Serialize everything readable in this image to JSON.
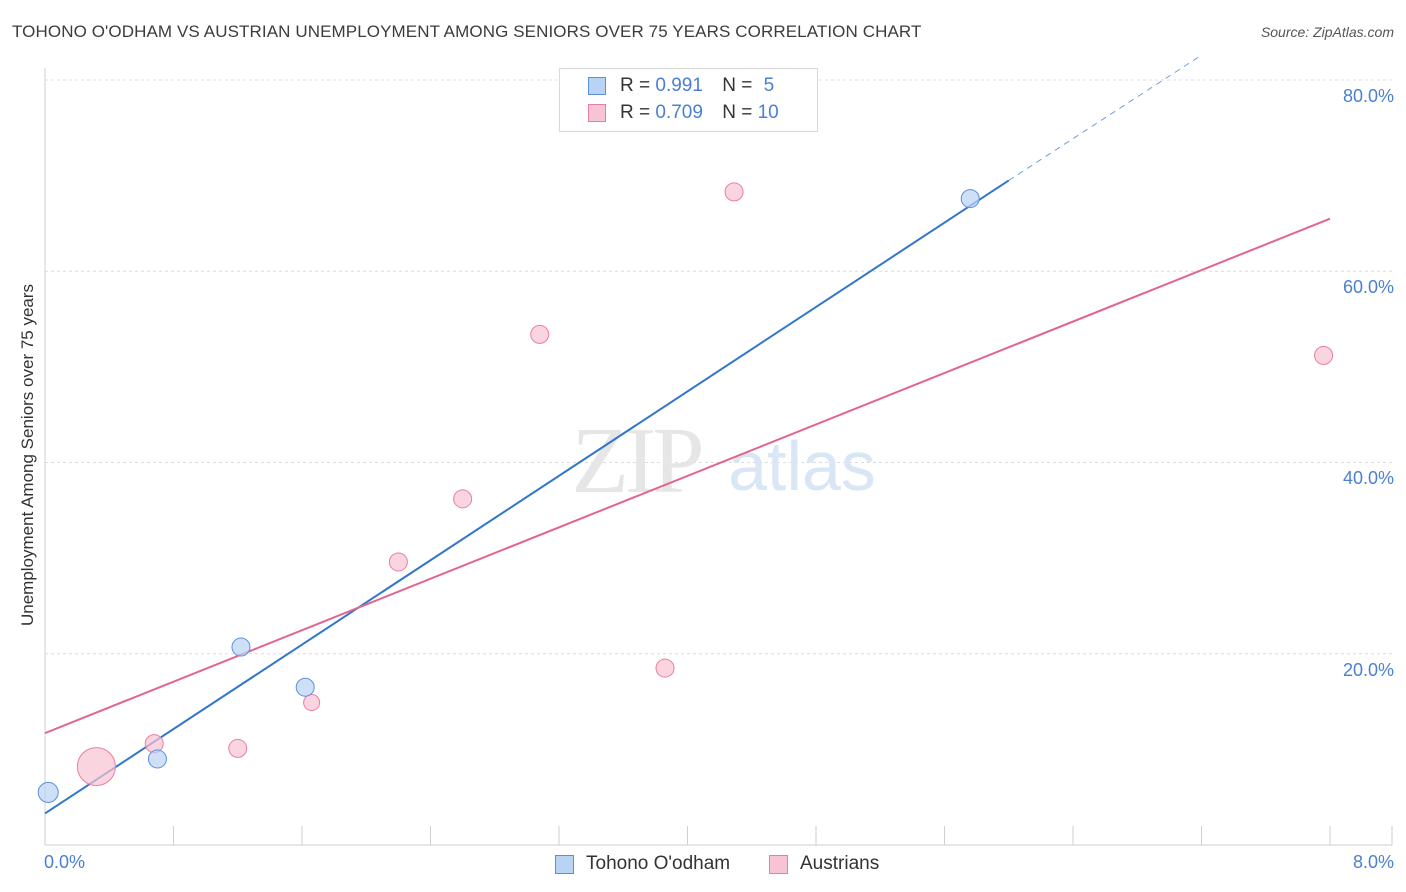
{
  "title": "TOHONO O'ODHAM VS AUSTRIAN UNEMPLOYMENT AMONG SENIORS OVER 75 YEARS CORRELATION CHART",
  "source": "Source: ZipAtlas.com",
  "watermark": {
    "zip": "ZIP",
    "atlas": "atlas"
  },
  "legend": {
    "rows": [
      {
        "r_label": "R = ",
        "r_value": "0.991",
        "n_label": "N = ",
        "n_value": "5"
      },
      {
        "r_label": "R = ",
        "r_value": "0.709",
        "n_label": "N = ",
        "n_value": "10"
      }
    ]
  },
  "colors": {
    "blue": "#5b8fd8",
    "blue_fill": "#b9d3f5",
    "blue_line": "#3276cc",
    "pink": "#e97fa0",
    "pink_fill": "#f8c3d3",
    "pink_line": "#e2648f",
    "grid": "#dcdcdc",
    "tick_label": "#4a7fd4"
  },
  "chart_data": {
    "type": "scatter",
    "title": "TOHONO O'ODHAM VS AUSTRIAN UNEMPLOYMENT AMONG SENIORS OVER 75 YEARS CORRELATION CHART",
    "xlabel": "",
    "ylabel": "Unemployment Among Seniors over 75 years",
    "xlim": [
      0,
      8
    ],
    "ylim": [
      0,
      80
    ],
    "x_tick_labels": [
      "0.0%",
      "8.0%"
    ],
    "y_ticks": [
      20,
      40,
      60,
      80
    ],
    "y_tick_labels": [
      "20.0%",
      "40.0%",
      "60.0%",
      "80.0%"
    ],
    "series": [
      {
        "name": "Tohono O'odham",
        "color": "blue",
        "points": [
          {
            "x": 0.02,
            "y": 5.5,
            "size": 10
          },
          {
            "x": 0.7,
            "y": 9.0,
            "size": 9
          },
          {
            "x": 1.22,
            "y": 20.7,
            "size": 9
          },
          {
            "x": 1.62,
            "y": 16.5,
            "size": 9
          },
          {
            "x": 5.76,
            "y": 67.6,
            "size": 9
          }
        ],
        "trend": {
          "x0": 0.0,
          "y0": 3.3,
          "x1": 6.0,
          "y1": 69.5,
          "dash_to_x": 7.2,
          "dash_to_y": 82.6
        }
      },
      {
        "name": "Austrians",
        "color": "pink",
        "points": [
          {
            "x": 0.32,
            "y": 8.2,
            "size": 19
          },
          {
            "x": 0.68,
            "y": 10.6,
            "size": 9
          },
          {
            "x": 1.2,
            "y": 10.1,
            "size": 9
          },
          {
            "x": 1.66,
            "y": 14.9,
            "size": 8
          },
          {
            "x": 2.2,
            "y": 29.6,
            "size": 9
          },
          {
            "x": 2.6,
            "y": 36.2,
            "size": 9
          },
          {
            "x": 3.08,
            "y": 53.4,
            "size": 9
          },
          {
            "x": 3.86,
            "y": 18.5,
            "size": 9
          },
          {
            "x": 4.29,
            "y": 68.3,
            "size": 9
          },
          {
            "x": 7.96,
            "y": 51.2,
            "size": 9
          }
        ],
        "trend": {
          "x0": 0.0,
          "y0": 11.7,
          "x1": 8.0,
          "y1": 65.5
        }
      }
    ]
  },
  "bottom_legend": [
    {
      "label": "Tohono O'odham"
    },
    {
      "label": "Austrians"
    }
  ]
}
